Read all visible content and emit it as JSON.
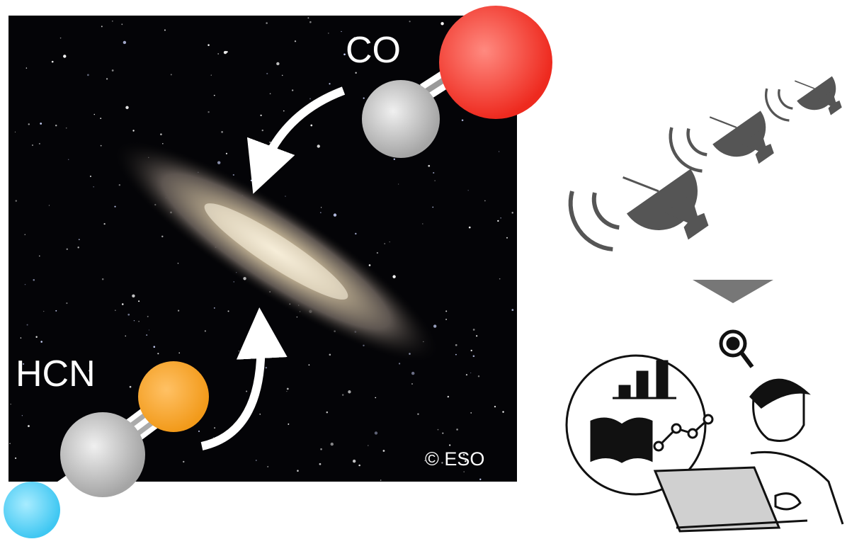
{
  "labels": {
    "co": "CO",
    "hcn": "HCN",
    "credit": "© ESO"
  }
}
